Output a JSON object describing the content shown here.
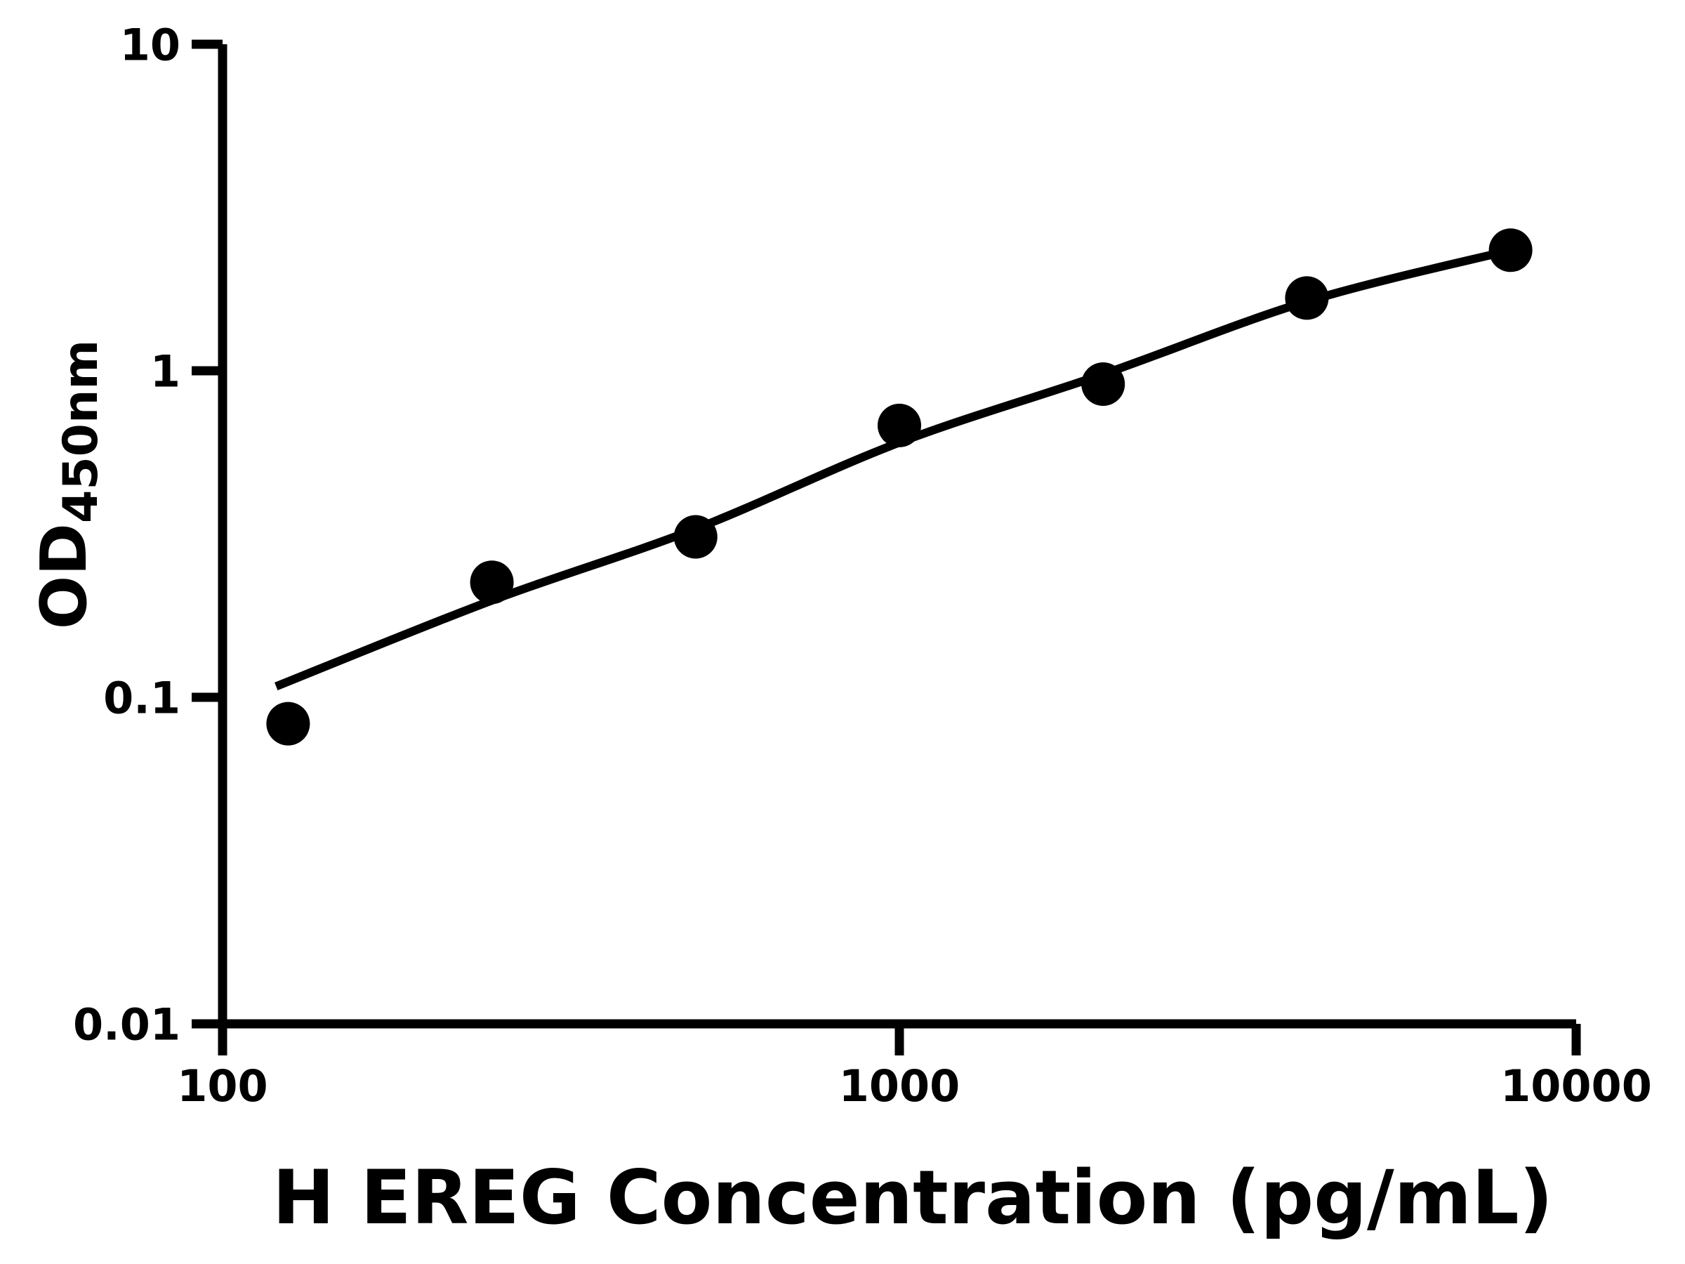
{
  "figure": {
    "background_color": "#ffffff",
    "foreground_color": "#000000"
  },
  "chart_data": {
    "type": "scatter",
    "title": "",
    "xlabel": "H EREG Concentration (pg/mL)",
    "ylabel_main": "OD",
    "ylabel_sub": "450nm",
    "x_scale": "log",
    "y_scale": "log",
    "xlim": [
      100,
      10000
    ],
    "ylim": [
      0.01,
      10
    ],
    "grid": false,
    "legend": null,
    "x_ticks": [
      {
        "value": 100,
        "label": "100"
      },
      {
        "value": 1000,
        "label": "1000"
      },
      {
        "value": 10000,
        "label": "10000"
      }
    ],
    "y_ticks": [
      {
        "value": 0.01,
        "label": "0.01"
      },
      {
        "value": 0.1,
        "label": "0.1"
      },
      {
        "value": 1,
        "label": "1"
      },
      {
        "value": 10,
        "label": "10"
      }
    ],
    "series": [
      {
        "name": "standard-curve-points",
        "marker": "circle",
        "color": "#000000",
        "points": [
          [
            125,
            0.083
          ],
          [
            250,
            0.225
          ],
          [
            500,
            0.31
          ],
          [
            1000,
            0.68
          ],
          [
            2000,
            0.91
          ],
          [
            4000,
            1.67
          ],
          [
            8000,
            2.34
          ]
        ]
      }
    ],
    "trend_line": {
      "name": "4pl-fit-curve",
      "color": "#000000",
      "points": [
        [
          120,
          0.108
        ],
        [
          250,
          0.198
        ],
        [
          500,
          0.328
        ],
        [
          1000,
          0.603
        ],
        [
          2000,
          0.976
        ],
        [
          4000,
          1.63
        ],
        [
          8000,
          2.34
        ]
      ]
    }
  }
}
